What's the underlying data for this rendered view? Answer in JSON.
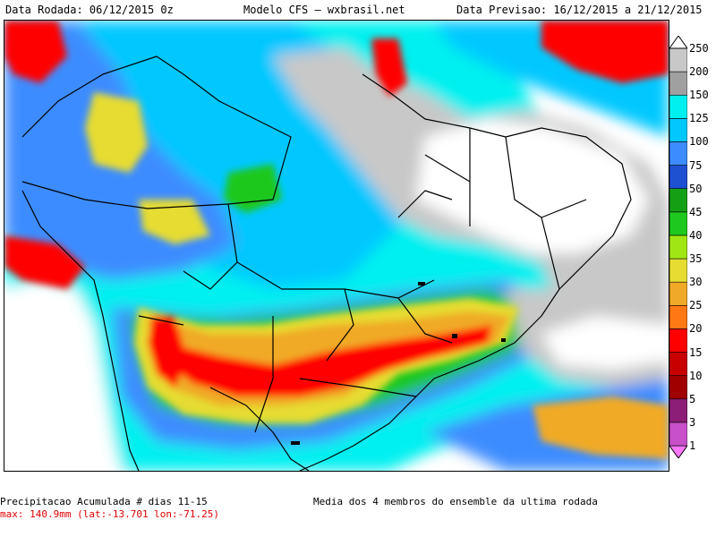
{
  "header": {
    "left": "Data Rodada: 06/12/2015 0z",
    "center": "Modelo CFS — wxbrasil.net",
    "right": "Data Previsao: 16/12/2015 a 21/12/2015"
  },
  "footer": {
    "line1": "Precipitacao Acumulada # dias 11-15",
    "line2": "max: 140.9mm (lat:-13.701 lon:-71.25)",
    "right": "Media dos 4 membros do ensemble da ultima rodada"
  },
  "legend": {
    "ticks": [
      "250",
      "200",
      "150",
      "125",
      "100",
      "75",
      "50",
      "45",
      "40",
      "35",
      "30",
      "25",
      "20",
      "15",
      "10",
      "5",
      "3",
      "1"
    ],
    "colors": [
      "#ffffff",
      "#c8c8c8",
      "#a0a0a0",
      "#00f0f0",
      "#00c8ff",
      "#3c8cff",
      "#1e50d2",
      "#14a014",
      "#1ec81e",
      "#a0e614",
      "#e6dc32",
      "#f0aa28",
      "#ff7814",
      "#ff0000",
      "#c80000",
      "#a00000",
      "#8c1e78",
      "#c850c8",
      "#ff78ff"
    ]
  },
  "map": {
    "colors": {
      "water": "#ffffff",
      "cyan": "#00f0f0",
      "light_blue": "#00c8ff",
      "blue": "#3c8cff",
      "dark_blue": "#1e50d2",
      "green": "#1ec81e",
      "yellow": "#e6dc32",
      "orange": "#f0aa28",
      "red": "#ff0000",
      "gray": "#c8c8c8",
      "dark_gray": "#a0a0a0"
    }
  }
}
